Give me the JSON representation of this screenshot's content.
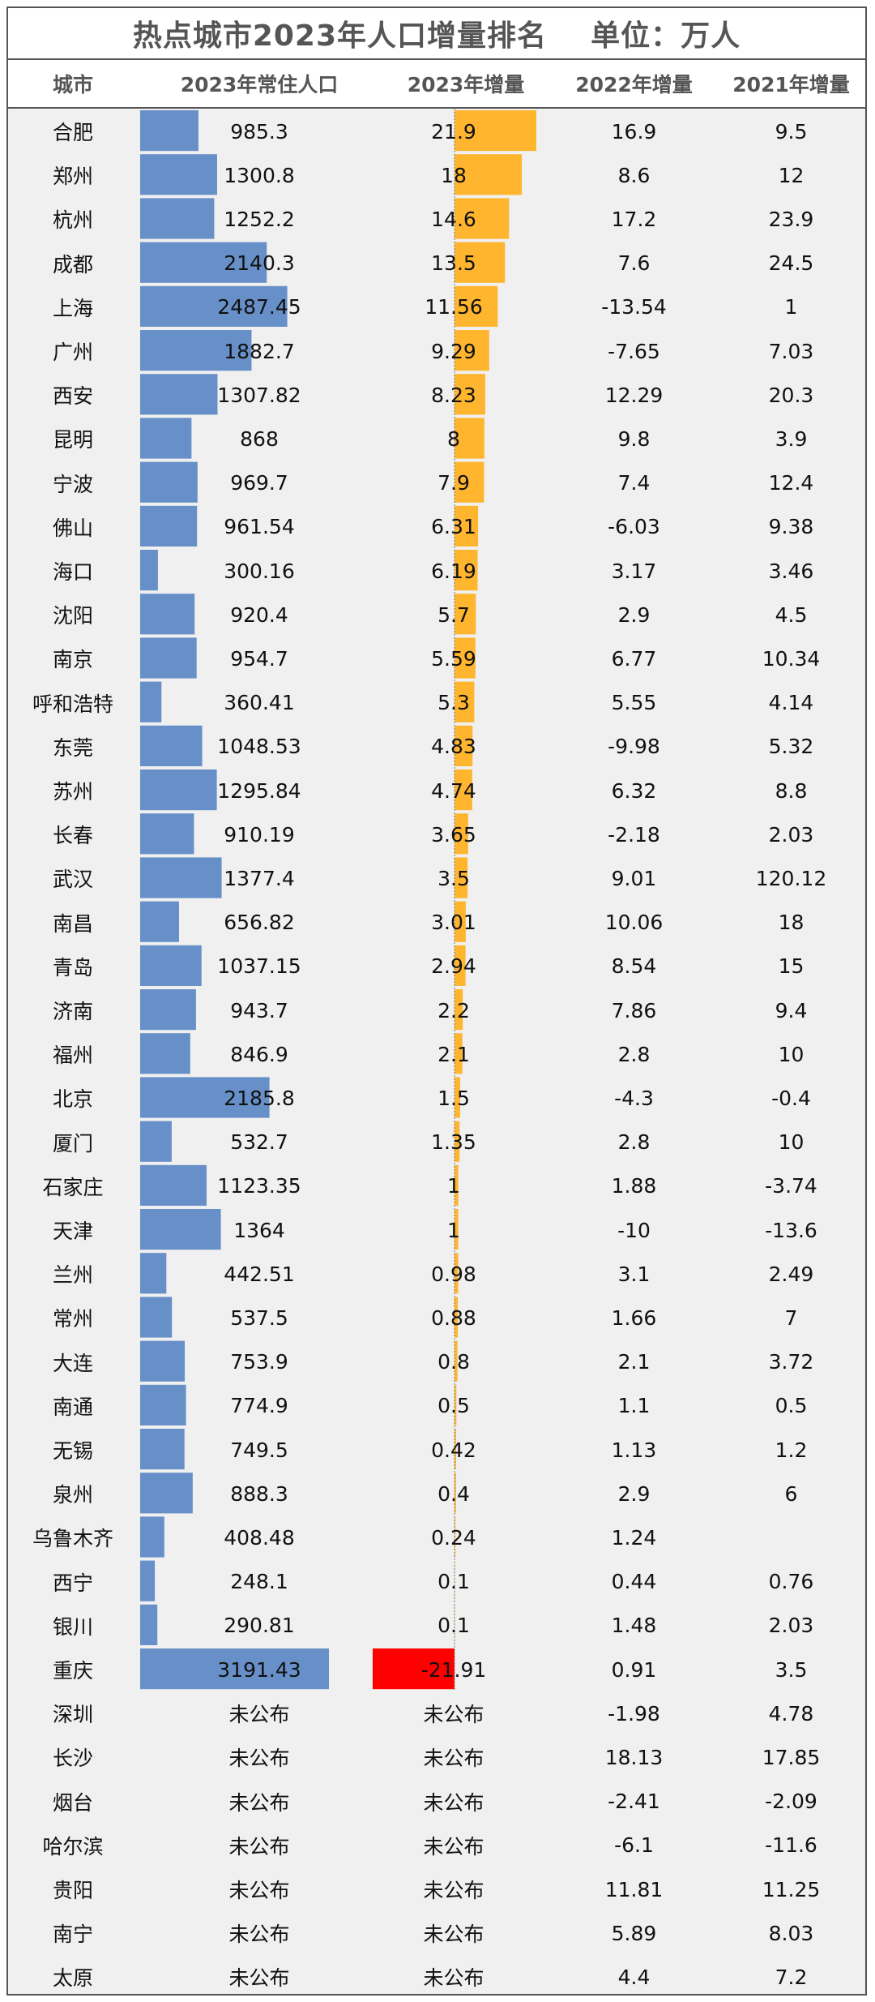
{
  "title": "热点城市2023年人口增量排名    单位：万人",
  "headers": [
    "城市",
    "2023年常住人口",
    "2023年增量",
    "2022年增量",
    "2021年增量"
  ],
  "colors": {
    "pop_bar": "#6890c8",
    "growth_bar": "#ffb52e",
    "negative_bar": "#ff0000",
    "unpublished": "#f0f0f0"
  },
  "chart_data": {
    "type": "table",
    "title": "热点城市2023年人口增量排名    单位：万人",
    "columns": [
      "城市",
      "2023年常住人口",
      "2023年增量",
      "2022年增量",
      "2021年增量"
    ],
    "rows": [
      [
        "合肥",
        "985.3",
        "21.9",
        "16.9",
        "9.5"
      ],
      [
        "郑州",
        "1300.8",
        "18",
        "8.6",
        "12"
      ],
      [
        "杭州",
        "1252.2",
        "14.6",
        "17.2",
        "23.9"
      ],
      [
        "成都",
        "2140.3",
        "13.5",
        "7.6",
        "24.5"
      ],
      [
        "上海",
        "2487.45",
        "11.56",
        "-13.54",
        "1"
      ],
      [
        "广州",
        "1882.7",
        "9.29",
        "-7.65",
        "7.03"
      ],
      [
        "西安",
        "1307.82",
        "8.23",
        "12.29",
        "20.3"
      ],
      [
        "昆明",
        "868",
        "8",
        "9.8",
        "3.9"
      ],
      [
        "宁波",
        "969.7",
        "7.9",
        "7.4",
        "12.4"
      ],
      [
        "佛山",
        "961.54",
        "6.31",
        "-6.03",
        "9.38"
      ],
      [
        "海口",
        "300.16",
        "6.19",
        "3.17",
        "3.46"
      ],
      [
        "沈阳",
        "920.4",
        "5.7",
        "2.9",
        "4.5"
      ],
      [
        "南京",
        "954.7",
        "5.59",
        "6.77",
        "10.34"
      ],
      [
        "呼和浩特",
        "360.41",
        "5.3",
        "5.55",
        "4.14"
      ],
      [
        "东莞",
        "1048.53",
        "4.83",
        "-9.98",
        "5.32"
      ],
      [
        "苏州",
        "1295.84",
        "4.74",
        "6.32",
        "8.8"
      ],
      [
        "长春",
        "910.19",
        "3.65",
        "-2.18",
        "2.03"
      ],
      [
        "武汉",
        "1377.4",
        "3.5",
        "9.01",
        "120.12"
      ],
      [
        "南昌",
        "656.82",
        "3.01",
        "10.06",
        "18"
      ],
      [
        "青岛",
        "1037.15",
        "2.94",
        "8.54",
        "15"
      ],
      [
        "济南",
        "943.7",
        "2.2",
        "7.86",
        "9.4"
      ],
      [
        "福州",
        "846.9",
        "2.1",
        "2.8",
        "10"
      ],
      [
        "北京",
        "2185.8",
        "1.5",
        "-4.3",
        "-0.4"
      ],
      [
        "厦门",
        "532.7",
        "1.35",
        "2.8",
        "10"
      ],
      [
        "石家庄",
        "1123.35",
        "1",
        "1.88",
        "-3.74"
      ],
      [
        "天津",
        "1364",
        "1",
        "-10",
        "-13.6"
      ],
      [
        "兰州",
        "442.51",
        "0.98",
        "3.1",
        "2.49"
      ],
      [
        "常州",
        "537.5",
        "0.88",
        "1.66",
        "7"
      ],
      [
        "大连",
        "753.9",
        "0.8",
        "2.1",
        "3.72"
      ],
      [
        "南通",
        "774.9",
        "0.5",
        "1.1",
        "0.5"
      ],
      [
        "无锡",
        "749.5",
        "0.42",
        "1.13",
        "1.2"
      ],
      [
        "泉州",
        "888.3",
        "0.4",
        "2.9",
        "6"
      ],
      [
        "乌鲁木齐",
        "408.48",
        "0.24",
        "1.24",
        ""
      ],
      [
        "西宁",
        "248.1",
        "0.1",
        "0.44",
        "0.76"
      ],
      [
        "银川",
        "290.81",
        "0.1",
        "1.48",
        "2.03"
      ],
      [
        "重庆",
        "3191.43",
        "-21.91",
        "0.91",
        "3.5"
      ],
      [
        "深圳",
        "未公布",
        "未公布",
        "-1.98",
        "4.78"
      ],
      [
        "长沙",
        "未公布",
        "未公布",
        "18.13",
        "17.85"
      ],
      [
        "烟台",
        "未公布",
        "未公布",
        "-2.41",
        "-2.09"
      ],
      [
        "哈尔滨",
        "未公布",
        "未公布",
        "-6.1",
        "-11.6"
      ],
      [
        "贵阳",
        "未公布",
        "未公布",
        "11.81",
        "11.25"
      ],
      [
        "南宁",
        "未公布",
        "未公布",
        "5.89",
        "8.03"
      ],
      [
        "太原",
        "未公布",
        "未公布",
        "4.4",
        "7.2"
      ]
    ]
  }
}
